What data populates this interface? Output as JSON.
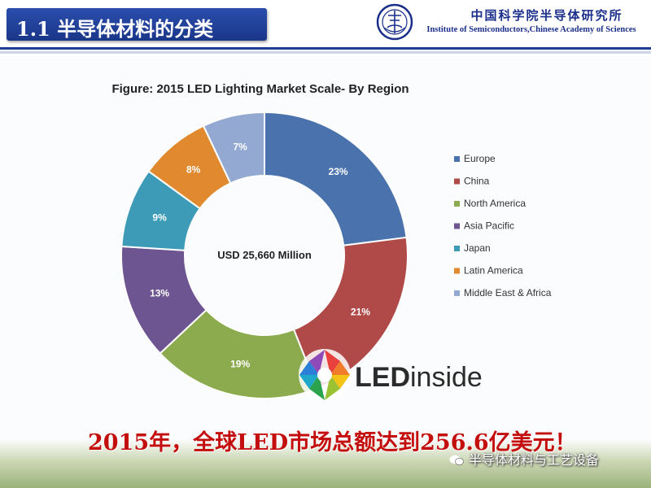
{
  "header": {
    "slide_title": "1.1 半导体材料的分类",
    "institute_cn": "中国科学院半导体研究所",
    "institute_en": "Institute of Semiconductors,Chinese Academy of Sciences",
    "logo_icon": "institute-emblem-icon"
  },
  "chart_data": {
    "type": "pie",
    "style": "donut",
    "title": "Figure: 2015 LED Lighting Market Scale- By Region",
    "center_label": "USD 25,660 Million",
    "legend_position": "right",
    "categories": [
      "Europe",
      "China",
      "North America",
      "Asia Pacific",
      "Japan",
      "Latin America",
      "Middle East & Africa"
    ],
    "values": [
      23,
      21,
      19,
      13,
      9,
      8,
      7
    ],
    "labels": [
      "23%",
      "21%",
      "19%",
      "13%",
      "9%",
      "8%",
      "7%"
    ],
    "unit": "%",
    "colors": [
      "#4a72ad",
      "#b04a48",
      "#8cab4e",
      "#6d5592",
      "#3d9bb8",
      "#e0892f",
      "#93a9d1"
    ]
  },
  "watermark": {
    "brand_first": "LED",
    "brand_second": "inside"
  },
  "summary": {
    "text": "2015年，全球LED市场总额达到256.6亿美元！"
  },
  "footer": {
    "wechat_label": "半导体材料与工艺设备",
    "wechat_icon": "wechat-icon"
  }
}
